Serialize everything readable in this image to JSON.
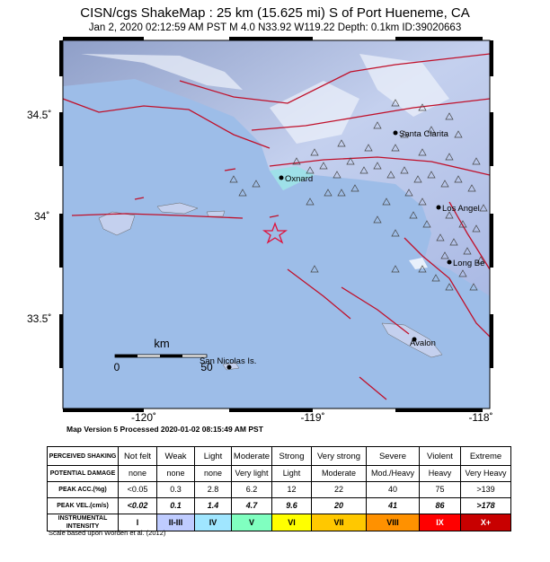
{
  "header": {
    "title": "CISN/cgs ShakeMap : 25 km (15.625 mi) S of Port Hueneme, CA",
    "subtitle": "Jan  2, 2020 02:12:59 AM PST   M 4.0   N33.92 W119.22   Depth: 0.1km   ID:39020663"
  },
  "map": {
    "lat_labels": [
      "34.5˚",
      "34˚",
      "33.5˚"
    ],
    "lon_labels": [
      "-120˚",
      "-119˚",
      "-118˚"
    ],
    "cities": [
      "Santa Clarita",
      "Oxnard",
      "Los Angel",
      "Long Be",
      "Avalon",
      "San Nicolas Is."
    ],
    "scale": {
      "unit": "km",
      "start": "0",
      "end": "50"
    }
  },
  "footer": {
    "version": "Map Version 5 Processed 2020-01-02 08:15:49 AM PST"
  },
  "table": {
    "rows": [
      [
        "PERCEIVED SHAKING",
        "Not felt",
        "Weak",
        "Light",
        "Moderate",
        "Strong",
        "Very strong",
        "Severe",
        "Violent",
        "Extreme"
      ],
      [
        "POTENTIAL DAMAGE",
        "none",
        "none",
        "none",
        "Very light",
        "Light",
        "Moderate",
        "Mod./Heavy",
        "Heavy",
        "Very Heavy"
      ],
      [
        "PEAK ACC.(%g)",
        "<0.05",
        "0.3",
        "2.8",
        "6.2",
        "12",
        "22",
        "40",
        "75",
        ">139"
      ],
      [
        "PEAK VEL.(cm/s)",
        "<0.02",
        "0.1",
        "1.4",
        "4.7",
        "9.6",
        "20",
        "41",
        "86",
        ">178"
      ],
      [
        "INSTRUMENTAL INTENSITY",
        "I",
        "II-III",
        "IV",
        "V",
        "VI",
        "VII",
        "VIII",
        "IX",
        "X+"
      ]
    ]
  },
  "note": "Scale based upon Worden et al. (2012)"
}
